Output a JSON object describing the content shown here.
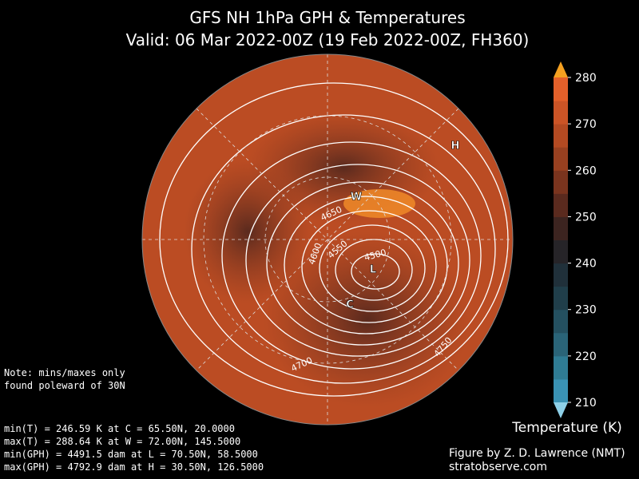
{
  "header": {
    "title": "GFS NH 1hPa GPH & Temperatures",
    "subtitle": "Valid: 06 Mar 2022-00Z  (19 Feb 2022-00Z, FH360)"
  },
  "colorbar": {
    "label": "Temperature (K)",
    "ticks": [
      210,
      220,
      230,
      240,
      250,
      260,
      270,
      280
    ],
    "colors": [
      "#3a92b4",
      "#2f7c94",
      "#2a6478",
      "#245060",
      "#203e4a",
      "#20303a",
      "#262428",
      "#3c2420",
      "#5a2a1e",
      "#7a341e",
      "#984020",
      "#b44a22",
      "#cc5426",
      "#e4602a"
    ],
    "over_color": "#f4a020",
    "under_color": "#8ed0e8"
  },
  "map": {
    "contour_labels": [
      "4650",
      "4550",
      "4600",
      "4500",
      "4700",
      "4750"
    ],
    "markers": [
      "H",
      "W",
      "L",
      "C"
    ]
  },
  "note": [
    "Note: mins/maxes only",
    "found poleward of 30N"
  ],
  "stats": [
    "min(T) = 246.59 K at C = 65.50N,   20.0000",
    "max(T) = 288.64 K at W = 72.00N,  145.5000",
    "min(GPH) = 4491.5 dam at L = 70.50N,   58.5000",
    "max(GPH) = 4792.9 dam at H = 30.50N,  126.5000"
  ],
  "credit": [
    "Figure by Z. D. Lawrence (NMT)",
    "stratobserve.com"
  ]
}
